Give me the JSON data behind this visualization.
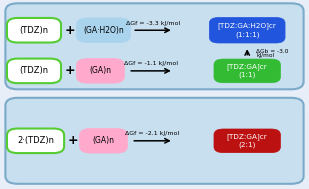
{
  "fig_w": 3.09,
  "fig_h": 1.89,
  "dpi": 100,
  "bg_color": "#e8eef8",
  "outer_box_color": "#c8dff0",
  "outer_box_edge": "#7aaac8",
  "tdz_fill": "#ffffff",
  "tdz_edge": "#55cc33",
  "gah2o_fill": "#aad4ee",
  "gah2o_edge": "#aad4ee",
  "ga_fill": "#ffaacc",
  "ga_edge": "#ffaacc",
  "prod1_fill": "#2255dd",
  "prod1_edge": "#2255dd",
  "prod2_fill": "#33bb33",
  "prod2_edge": "#33bb33",
  "prod3_fill": "#bb1111",
  "prod3_edge": "#bb1111",
  "row1_tdz": "(TDZ)n",
  "row1_ga": "(GA·H2O)n",
  "row1_dGf": "ΔGf = -3.3 kJ/mol",
  "row1_prod_line1": "[TDZ:GA:H2O]cr",
  "row1_prod_line2": "(1:1:1)",
  "row1_dGb_line1": "ΔGb = -3.0",
  "row1_dGb_line2": "kJ/mol",
  "row2_tdz": "(TDZ)n",
  "row2_ga": "(GA)n",
  "row2_dGf": "ΔGf = -1.1 kJ/mol",
  "row2_prod_line1": "[TDZ:GA]cr",
  "row2_prod_line2": "(1:1)",
  "row3_tdz": "2·(TDZ)n",
  "row3_ga": "(GA)n",
  "row3_dGf": "ΔGf = -2.1 kJ/mol",
  "row3_prod_line1": "[TDZ:GA]cr",
  "row3_prod_line2": "(2:1)"
}
